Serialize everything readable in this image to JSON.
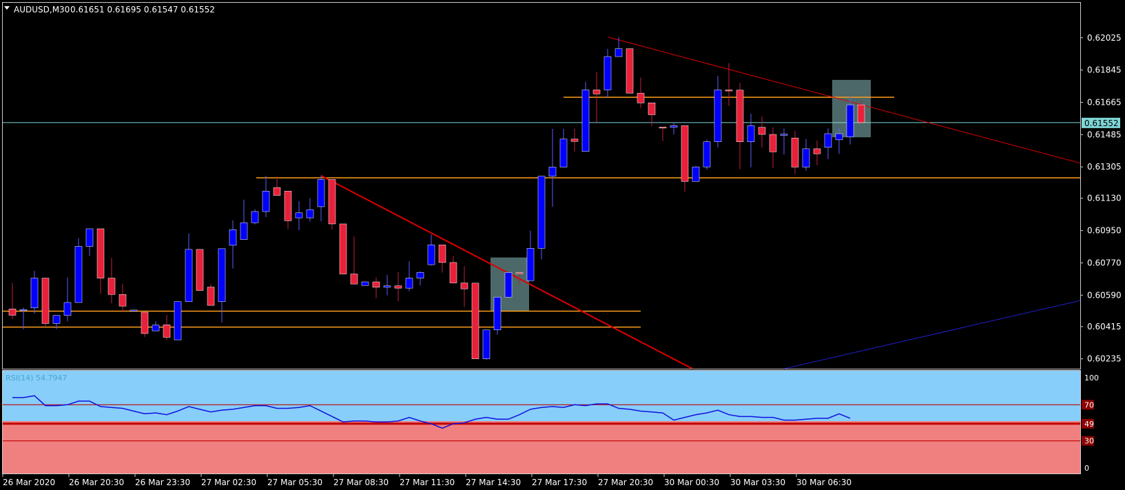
{
  "header": {
    "symbol": "AUDUSD,M30",
    "quote": "0.61651 0.61695 0.61547 0.61552"
  },
  "current_price_label": "0.61552",
  "colors": {
    "background": "#000000",
    "axis": "#ffffff",
    "bull": "#0000ff",
    "bear": "#e8213b",
    "wick_bull": "#5b5bff",
    "wick_bear": "#c02040",
    "support": "#ff9d1a",
    "trendline": "#e00000",
    "ascending_line": "#2020d0",
    "highlight": "#5a7a7a",
    "price_line": "#7fd6d6",
    "rsi_upper": "#87cefa",
    "rsi_lower": "#f08080",
    "rsi_line": "#1010e0",
    "rsi_level": "#c00000"
  },
  "rsi": {
    "label": "RSI(14) 54.7947",
    "levels": [
      "100",
      "70",
      "49",
      "30",
      "0"
    ]
  },
  "chart_data": [
    {
      "type": "candlestick",
      "title": "AUDUSD,M30",
      "x_ticks": [
        "26 Mar 2020",
        "26 Mar 20:30",
        "26 Mar 23:30",
        "27 Mar 02:30",
        "27 Mar 05:30",
        "27 Mar 08:30",
        "27 Mar 11:30",
        "27 Mar 14:30",
        "27 Mar 17:30",
        "27 Mar 20:30",
        "30 Mar 00:30",
        "30 Mar 03:30",
        "30 Mar 06:30"
      ],
      "y_ticks": [
        "0.62025",
        "0.61845",
        "0.61665",
        "0.61485",
        "0.61305",
        "0.61130",
        "0.60950",
        "0.60770",
        "0.60590",
        "0.60415",
        "0.60235"
      ],
      "ylim": [
        0.6018,
        0.6222
      ],
      "candles": [
        [
          0.60513,
          0.60478,
          0.60658,
          0.60458
        ],
        [
          0.6051,
          0.6051,
          0.60521,
          0.604
        ],
        [
          0.60519,
          0.60685,
          0.60725,
          0.60487
        ],
        [
          0.60685,
          0.60432,
          0.60685,
          0.60418
        ],
        [
          0.60432,
          0.60477,
          0.60477,
          0.60401
        ],
        [
          0.60477,
          0.60549,
          0.60688,
          0.60444
        ],
        [
          0.60549,
          0.60862,
          0.60908,
          0.60549
        ],
        [
          0.60862,
          0.6096,
          0.60959,
          0.60809
        ],
        [
          0.6096,
          0.60685,
          0.60934,
          0.60598
        ],
        [
          0.60685,
          0.60594,
          0.60798,
          0.60545
        ],
        [
          0.60594,
          0.60529,
          0.60654,
          0.60495
        ],
        [
          0.60507,
          0.60507,
          0.60507,
          0.60504
        ],
        [
          0.60495,
          0.60376,
          0.60476,
          0.60357
        ],
        [
          0.60391,
          0.60423,
          0.60444,
          0.60391
        ],
        [
          0.60425,
          0.60355,
          0.6048,
          0.60341
        ],
        [
          0.60341,
          0.60554,
          0.60554,
          0.60349
        ],
        [
          0.60554,
          0.60845,
          0.60934,
          0.60554
        ],
        [
          0.60845,
          0.60616,
          0.60845,
          0.60616
        ],
        [
          0.60635,
          0.60533,
          0.60651,
          0.60568
        ],
        [
          0.60554,
          0.60849,
          0.60849,
          0.60437
        ],
        [
          0.60868,
          0.60955,
          0.61007,
          0.60739
        ],
        [
          0.609,
          0.60994,
          0.61122,
          0.609
        ],
        [
          0.60994,
          0.61056,
          0.61069,
          0.60985
        ],
        [
          0.61056,
          0.6117,
          0.61255,
          0.61025
        ],
        [
          0.6119,
          0.61146,
          0.61252,
          0.61146
        ],
        [
          0.6117,
          0.61005,
          0.61135,
          0.60959
        ],
        [
          0.61021,
          0.61049,
          0.61114,
          0.60952
        ],
        [
          0.61021,
          0.61067,
          0.61131,
          0.61
        ],
        [
          0.61083,
          0.61235,
          0.61256,
          0.61002
        ],
        [
          0.61235,
          0.60987,
          0.61233,
          0.60956
        ],
        [
          0.60987,
          0.60708,
          0.60798,
          0.60708
        ],
        [
          0.60708,
          0.60652,
          0.60917,
          0.60651
        ],
        [
          0.60644,
          0.60664,
          0.60664,
          0.60651
        ],
        [
          0.60664,
          0.60634,
          0.60689,
          0.60574
        ],
        [
          0.60634,
          0.60642,
          0.60703,
          0.60589
        ],
        [
          0.60642,
          0.60629,
          0.6072,
          0.60555
        ],
        [
          0.60629,
          0.60685,
          0.60779,
          0.60612
        ],
        [
          0.60685,
          0.60717,
          0.60723,
          0.60644
        ],
        [
          0.6076,
          0.6087,
          0.60929,
          0.60755
        ],
        [
          0.6087,
          0.60772,
          0.6087,
          0.60716
        ],
        [
          0.60772,
          0.60658,
          0.60809,
          0.60656
        ],
        [
          0.60658,
          0.60625,
          0.60752,
          0.60524
        ],
        [
          0.60657,
          0.60235,
          0.60657,
          0.60235
        ],
        [
          0.60235,
          0.60396,
          0.60396,
          0.60228
        ],
        [
          0.60396,
          0.60579,
          0.6058,
          0.60369
        ],
        [
          0.60579,
          0.60716,
          0.60675,
          0.60607
        ],
        [
          0.60716,
          0.6071,
          0.60719,
          0.60651
        ],
        [
          0.60671,
          0.60851,
          0.6095,
          0.60702
        ],
        [
          0.60851,
          0.61253,
          0.61253,
          0.60789
        ],
        [
          0.61253,
          0.61304,
          0.61517,
          0.61083
        ],
        [
          0.61304,
          0.6146,
          0.61517,
          0.61304
        ],
        [
          0.6146,
          0.61447,
          0.61518,
          0.61391
        ],
        [
          0.61391,
          0.61734,
          0.6178,
          0.61391
        ],
        [
          0.61734,
          0.61712,
          0.61833,
          0.61553
        ],
        [
          0.61734,
          0.6192,
          0.61963,
          0.61692
        ],
        [
          0.6192,
          0.61964,
          0.62028,
          0.61932
        ],
        [
          0.61964,
          0.61716,
          0.61964,
          0.61716
        ],
        [
          0.61716,
          0.61662,
          0.61803,
          0.61633
        ],
        [
          0.61662,
          0.61596,
          0.61662,
          0.61533
        ],
        [
          0.61527,
          0.61526,
          0.61527,
          0.61449
        ],
        [
          0.61526,
          0.61535,
          0.61549,
          0.61485
        ],
        [
          0.61535,
          0.61224,
          0.61535,
          0.61167
        ],
        [
          0.61224,
          0.61305,
          0.61309,
          0.61224
        ],
        [
          0.61305,
          0.61445,
          0.61457,
          0.61289
        ],
        [
          0.61445,
          0.61734,
          0.61813,
          0.61413
        ],
        [
          0.61734,
          0.61733,
          0.61883,
          0.61645
        ],
        [
          0.61733,
          0.61445,
          0.61773,
          0.61292
        ],
        [
          0.61445,
          0.61535,
          0.61602,
          0.61303
        ],
        [
          0.61526,
          0.61486,
          0.61586,
          0.61413
        ],
        [
          0.61486,
          0.61389,
          0.61526,
          0.61298
        ],
        [
          0.61481,
          0.61488,
          0.6152,
          0.61374
        ],
        [
          0.61466,
          0.61304,
          0.61506,
          0.61265
        ],
        [
          0.61304,
          0.61406,
          0.61461,
          0.61284
        ],
        [
          0.61406,
          0.61378,
          0.61452,
          0.61315
        ],
        [
          0.61414,
          0.6149,
          0.6152,
          0.61348
        ],
        [
          0.61456,
          0.6149,
          0.61522,
          0.61377
        ],
        [
          0.61472,
          0.61651,
          0.61695,
          0.6143
        ],
        [
          0.61651,
          0.61552,
          0.61676,
          0.61547
        ]
      ],
      "candle_fields": [
        "open",
        "close",
        "high",
        "low"
      ],
      "horizontal_levels": [
        0.60501,
        0.60412,
        0.61244,
        0.61693
      ],
      "bid_line": 0.61552
    },
    {
      "type": "line",
      "title": "RSI(14) 54.7947",
      "ylim": [
        0,
        100
      ],
      "levels": [
        70,
        49,
        30
      ],
      "series": [
        {
          "values": [
            78,
            78,
            80,
            69,
            69,
            70,
            74,
            74,
            68,
            67,
            66,
            63,
            60,
            61,
            59,
            63,
            68,
            65,
            62,
            64,
            65,
            67,
            69,
            69,
            66,
            66,
            67,
            69,
            63,
            57,
            51,
            52,
            52,
            51,
            51,
            52,
            56,
            52,
            49,
            44,
            49,
            50,
            54,
            56,
            54,
            54,
            59,
            65,
            67,
            68,
            67,
            70,
            69,
            71,
            71,
            66,
            65,
            63,
            62,
            61,
            53,
            56,
            59,
            61,
            64,
            59,
            57,
            57,
            56,
            56,
            53,
            53,
            54,
            55,
            55,
            60,
            55
          ]
        }
      ]
    }
  ]
}
